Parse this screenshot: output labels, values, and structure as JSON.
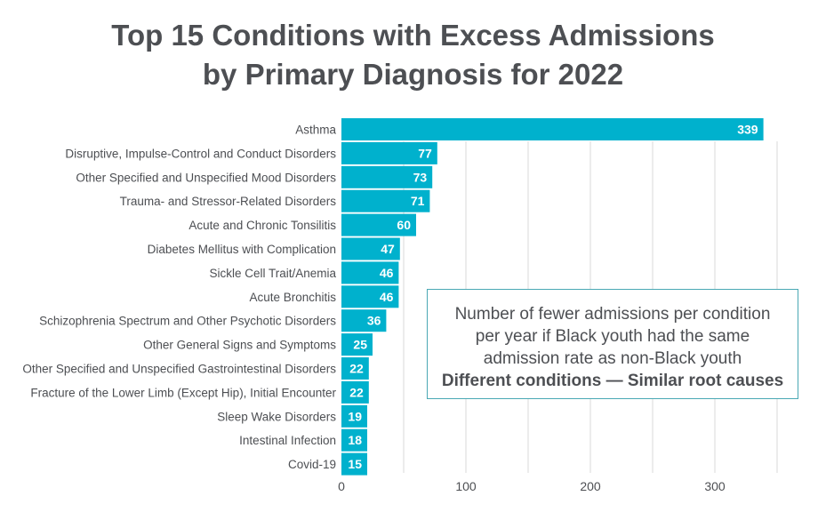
{
  "chart_data": {
    "type": "bar",
    "orientation": "horizontal",
    "title": "Top 15 Conditions with Excess Admissions by Primary Diagnosis for 2022",
    "title_lines": [
      "Top 15 Conditions with Excess Admissions",
      "by Primary Diagnosis for 2022"
    ],
    "xlabel": "",
    "ylabel": "",
    "xlim": [
      0,
      350
    ],
    "xticks": [
      0,
      100,
      200,
      300
    ],
    "grid": true,
    "bar_color": "#00b1cd",
    "categories": [
      "Asthma",
      "Disruptive, Impulse-Control and Conduct Disorders",
      "Other Specified and Unspecified Mood Disorders",
      "Trauma- and Stressor-Related Disorders",
      "Acute and Chronic Tonsilitis",
      "Diabetes Mellitus with Complication",
      "Sickle Cell Trait/Anemia",
      "Acute Bronchitis",
      "Schizophrenia Spectrum and Other Psychotic Disorders",
      "Other General Signs and Symptoms",
      "Other Specified and Unspecified Gastrointestinal Disorders",
      "Fracture of the Lower Limb (Except Hip), Initial Encounter",
      "Sleep Wake Disorders",
      "Intestinal Infection",
      "Covid-19"
    ],
    "values": [
      339,
      77,
      73,
      71,
      60,
      47,
      46,
      46,
      36,
      25,
      22,
      22,
      19,
      18,
      15
    ],
    "annotation": {
      "lines": [
        "Number of fewer admissions per condition",
        "per year if Black youth had the same",
        "admission rate as non-Black youth"
      ],
      "emphasis": "Different conditions — Similar root causes"
    }
  }
}
